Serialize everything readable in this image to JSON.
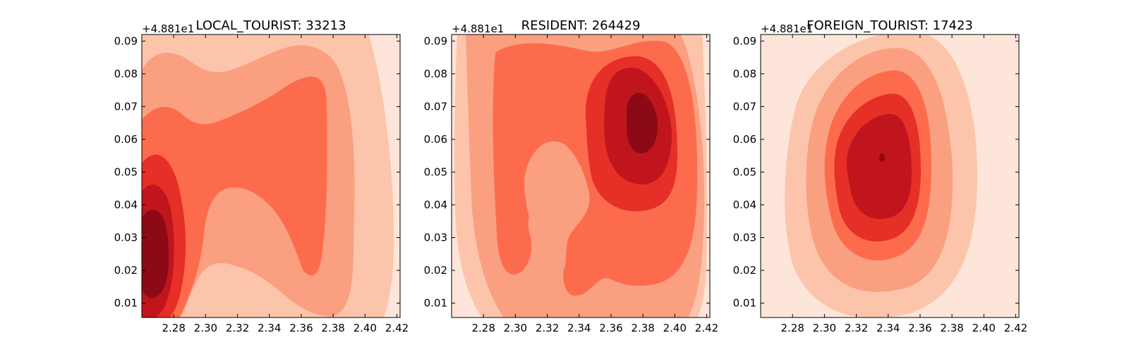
{
  "figure": {
    "colors": {
      "levels": [
        "#fee5d9",
        "#fcc5ab",
        "#fb9f81",
        "#fc6c4c",
        "#e52f27",
        "#c0151d",
        "#8b0a15"
      ],
      "axis": "#000000",
      "background": "#ffffff"
    }
  },
  "chart_data": [
    {
      "type": "contour",
      "title": "LOCAL_TOURIST: 33213",
      "y_offset_label": "+4.881e1",
      "xlabel": "",
      "ylabel": "",
      "xlim": [
        2.26,
        2.422
      ],
      "ylim": [
        48.8156,
        48.902
      ],
      "xticks": [
        "2.28",
        "2.30",
        "2.32",
        "2.34",
        "2.36",
        "2.38",
        "2.40",
        "2.42"
      ],
      "yticks": [
        "0.01",
        "0.02",
        "0.03",
        "0.04",
        "0.05",
        "0.06",
        "0.07",
        "0.08",
        "0.09"
      ],
      "grid": false,
      "density_peaks": [
        {
          "x": 2.27,
          "y": 48.838,
          "intensity": "highest"
        },
        {
          "x": 2.35,
          "y": 48.875,
          "intensity": "medium"
        }
      ]
    },
    {
      "type": "contour",
      "title": "RESIDENT: 264429",
      "y_offset_label": "+4.881e1",
      "xlabel": "",
      "ylabel": "",
      "xlim": [
        2.26,
        2.422
      ],
      "ylim": [
        48.8156,
        48.902
      ],
      "xticks": [
        "2.28",
        "2.30",
        "2.32",
        "2.34",
        "2.36",
        "2.38",
        "2.40",
        "2.42"
      ],
      "yticks": [
        "0.01",
        "0.02",
        "0.03",
        "0.04",
        "0.05",
        "0.06",
        "0.07",
        "0.08",
        "0.09"
      ],
      "grid": false,
      "density_peaks": [
        {
          "x": 2.38,
          "y": 48.875,
          "intensity": "highest"
        }
      ]
    },
    {
      "type": "contour",
      "title": "FOREIGN_TOURIST: 17423",
      "y_offset_label": "+4.881e1",
      "xlabel": "",
      "ylabel": "",
      "xlim": [
        2.26,
        2.422
      ],
      "ylim": [
        48.8156,
        48.902
      ],
      "xticks": [
        "2.28",
        "2.30",
        "2.32",
        "2.34",
        "2.36",
        "2.38",
        "2.40",
        "2.42"
      ],
      "yticks": [
        "0.01",
        "0.02",
        "0.03",
        "0.04",
        "0.05",
        "0.06",
        "0.07",
        "0.08",
        "0.09"
      ],
      "grid": false,
      "density_peaks": [
        {
          "x": 2.335,
          "y": 48.865,
          "intensity": "highest"
        }
      ]
    }
  ]
}
